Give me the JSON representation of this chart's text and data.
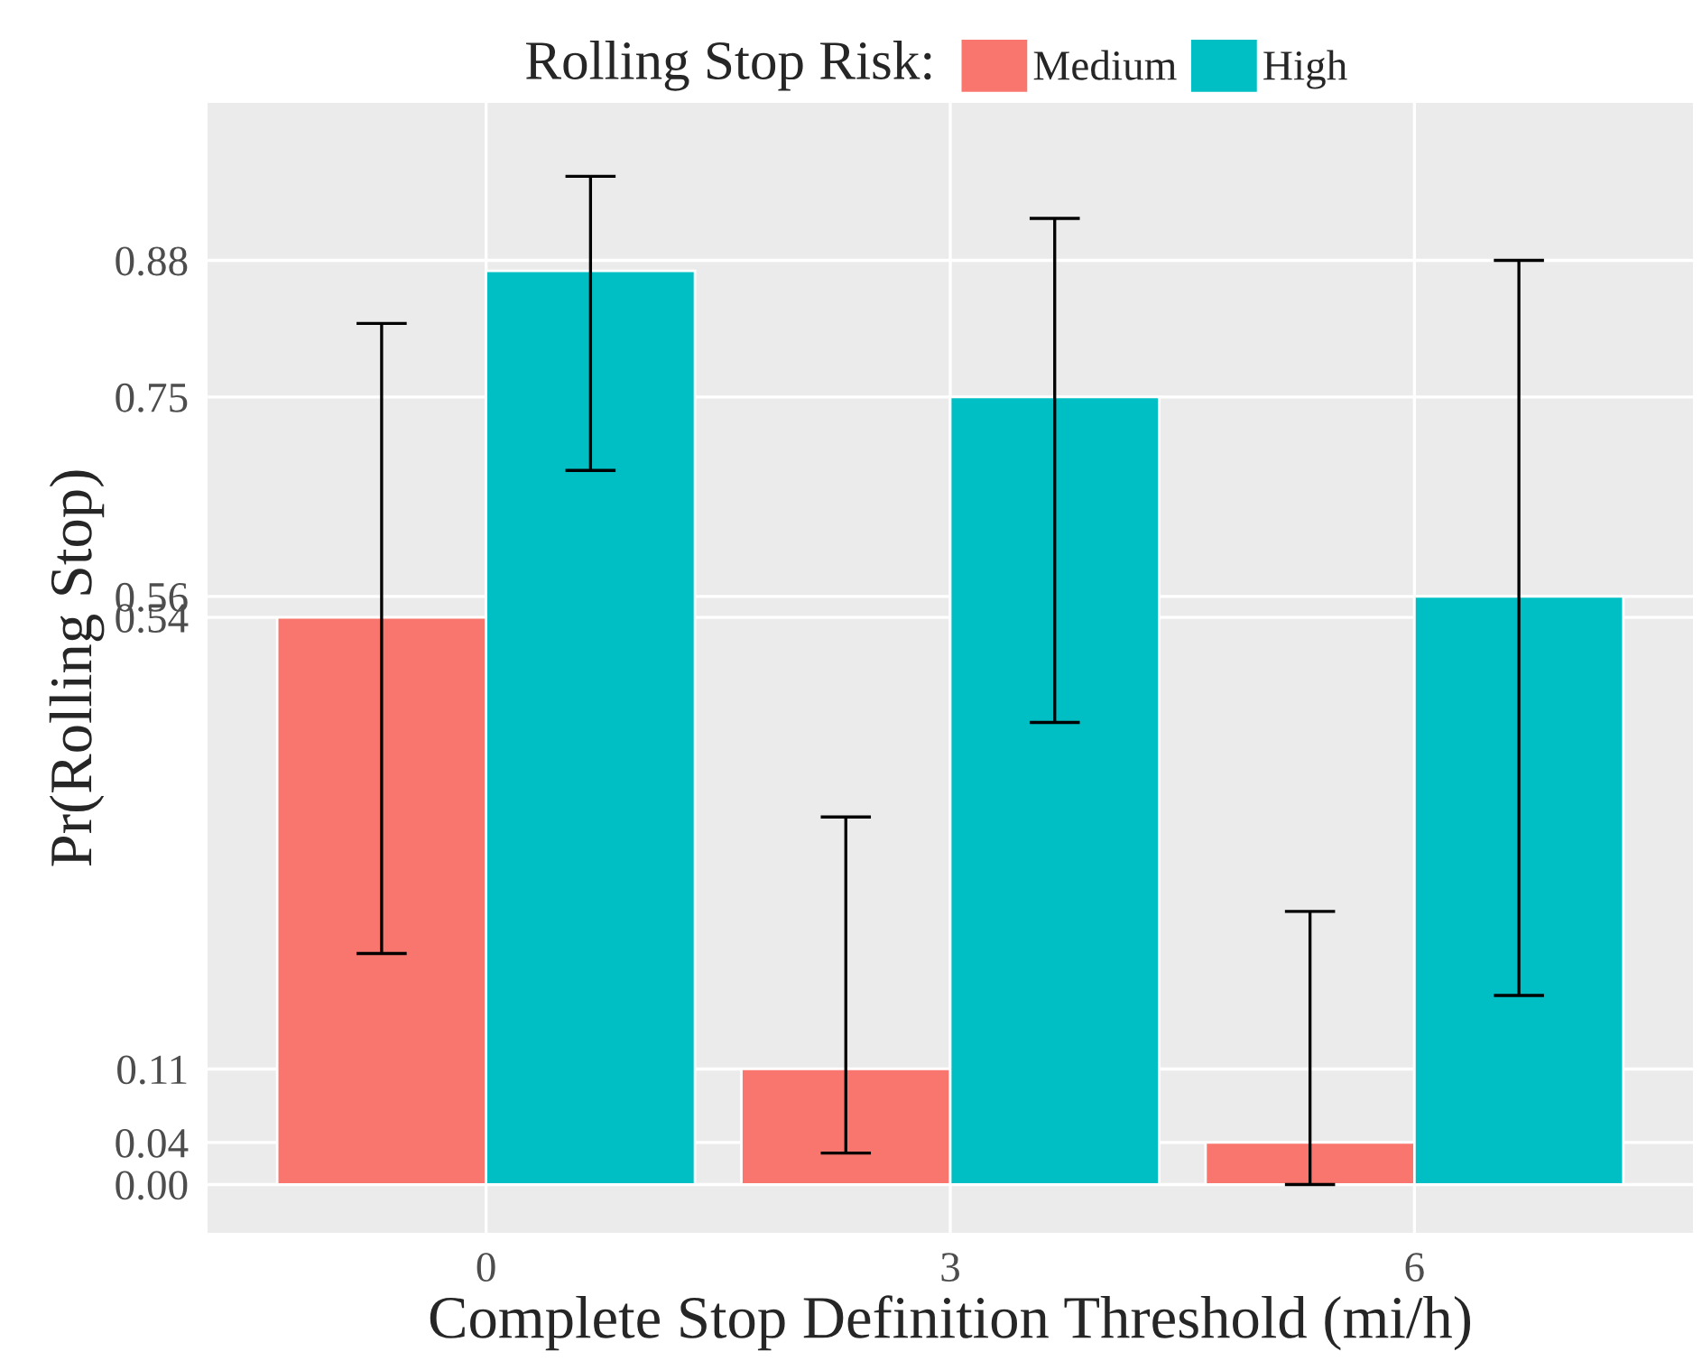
{
  "chart_data": {
    "type": "bar",
    "xlabel": "Complete Stop Definition Threshold (mi/h)",
    "ylabel": "Pr(Rolling Stop)",
    "legend_title": "Rolling Stop Risk:",
    "legend": "top",
    "categories": [
      "0",
      "3",
      "6"
    ],
    "series": [
      {
        "name": "Medium",
        "color": "#f8766d",
        "values": [
          0.54,
          0.11,
          0.04
        ],
        "errors": [
          [
            0.22,
            0.82
          ],
          [
            0.03,
            0.35
          ],
          [
            0.0,
            0.26
          ]
        ]
      },
      {
        "name": "High",
        "color": "#00bfc4",
        "values": [
          0.87,
          0.75,
          0.56
        ],
        "errors": [
          [
            0.68,
            0.96
          ],
          [
            0.44,
            0.92
          ],
          [
            0.18,
            0.88
          ]
        ]
      }
    ],
    "ylim": [
      -0.046,
      1.03
    ],
    "yticks": [
      {
        "value": 0,
        "label": "0.00"
      },
      0.04,
      0.11,
      0.54,
      0.56,
      0.75,
      0.88
    ],
    "grid": true
  }
}
